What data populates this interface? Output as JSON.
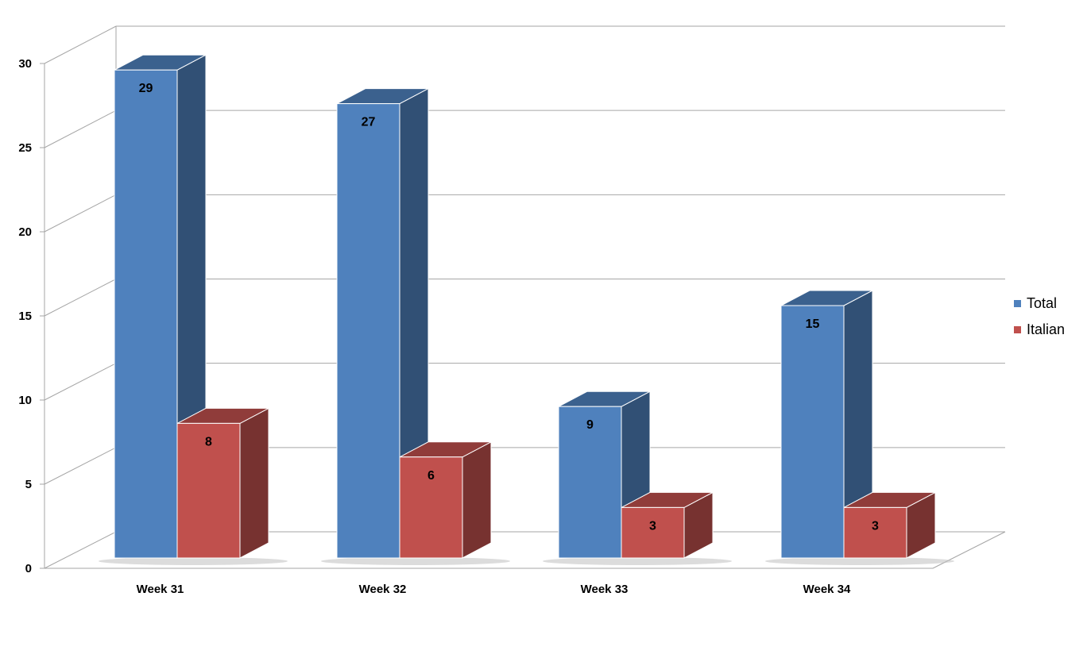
{
  "chart_data": {
    "type": "bar",
    "categories": [
      "Week 31",
      "Week 32",
      "Week 33",
      "Week 34"
    ],
    "series": [
      {
        "name": "Total",
        "values": [
          29,
          27,
          9,
          15
        ],
        "color": "#4f81bd"
      },
      {
        "name": "Italian",
        "values": [
          8,
          6,
          3,
          3
        ],
        "color": "#c0504d"
      }
    ],
    "yticks": [
      "0",
      "5",
      "10",
      "15",
      "20",
      "25",
      "30"
    ],
    "ylim": [
      0,
      30
    ],
    "grid": true,
    "legend_position": "right",
    "style": "3d-clustered-column"
  }
}
